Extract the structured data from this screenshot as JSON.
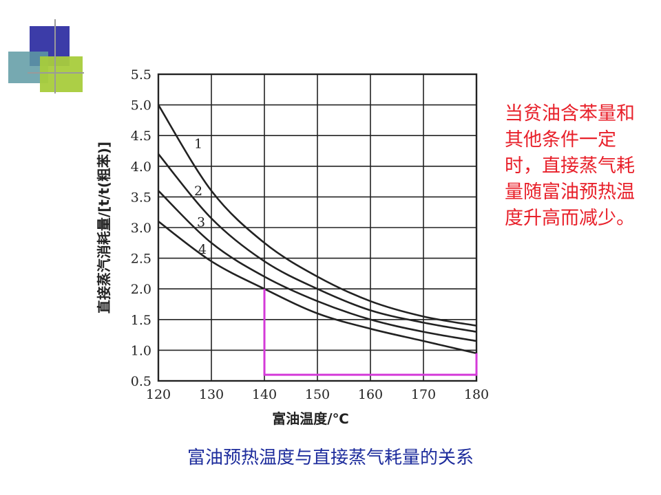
{
  "colors": {
    "deco_navy": "#3c3ca8",
    "deco_teal": "#5e9aa3",
    "deco_green": "#a8cc3c",
    "deco_line": "#9a9a9a",
    "axis": "#222222",
    "highlight": "#d43ad8",
    "note_text": "#e8202a",
    "caption_text": "#1d2c9c"
  },
  "side_note": "当贫油含苯量和其他条件一定时，直接蒸气耗量随富油预热温度升高而减少。",
  "caption": "富油预热温度与直接蒸气耗量的关系",
  "chart_data": {
    "type": "line",
    "xlabel": "富油温度/℃",
    "ylabel": "直接蒸汽消耗量/[t/t(粗苯)]",
    "xlim": [
      120,
      180
    ],
    "ylim": [
      0.5,
      5.5
    ],
    "x_ticks": [
      120,
      130,
      140,
      150,
      160,
      170,
      180
    ],
    "y_ticks": [
      0.5,
      1.0,
      1.5,
      2.0,
      2.5,
      3.0,
      3.5,
      4.0,
      4.5,
      5.0,
      5.5
    ],
    "x_tick_labels": [
      "120",
      "130",
      "140",
      "150",
      "160",
      "170",
      "180"
    ],
    "y_tick_labels": [
      "0.5",
      "1.0",
      "1.5",
      "2.0",
      "2.5",
      "3.0",
      "3.5",
      "4.0",
      "4.5",
      "5.0",
      "5.5"
    ],
    "grid": true,
    "x": [
      120,
      130,
      140,
      150,
      160,
      170,
      180
    ],
    "series": [
      {
        "name": "1",
        "values": [
          5.0,
          3.6,
          2.75,
          2.2,
          1.8,
          1.55,
          1.4
        ]
      },
      {
        "name": "2",
        "values": [
          4.2,
          3.15,
          2.45,
          2.0,
          1.65,
          1.45,
          1.3
        ]
      },
      {
        "name": "3",
        "values": [
          3.6,
          2.75,
          2.2,
          1.8,
          1.5,
          1.3,
          1.15
        ]
      },
      {
        "name": "4",
        "values": [
          3.1,
          2.45,
          2.0,
          1.6,
          1.35,
          1.15,
          0.95
        ]
      }
    ],
    "highlight": {
      "x_from": 140,
      "x_to": 180,
      "y_base": 0.6
    }
  }
}
